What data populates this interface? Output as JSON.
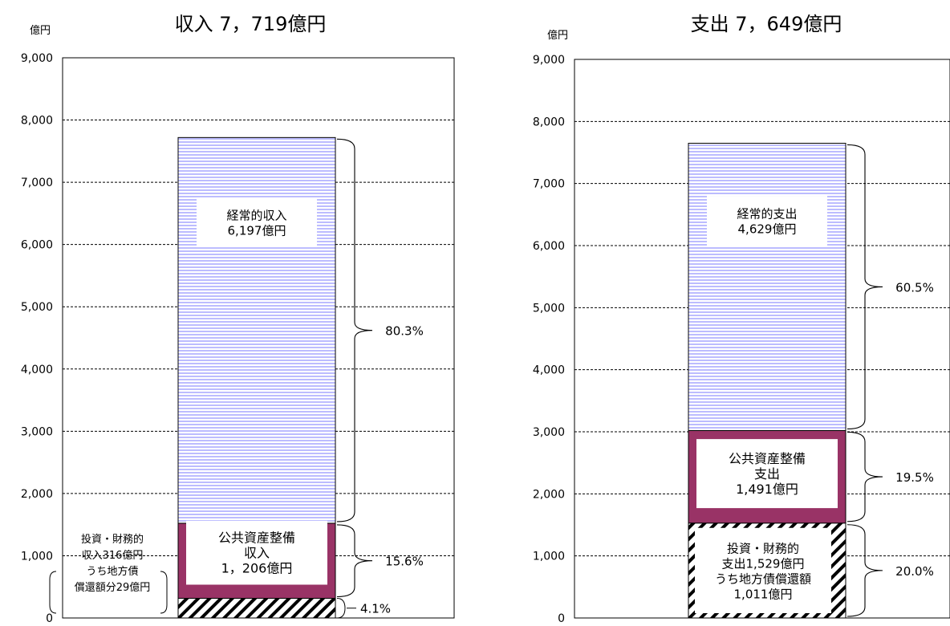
{
  "chart_data": [
    {
      "type": "bar",
      "title": "収入  7，719億円",
      "ylabel": "億円",
      "ylim": [
        0,
        9000
      ],
      "yticks": [
        "0",
        "1,000",
        "2,000",
        "3,000",
        "4,000",
        "5,000",
        "6,000",
        "7,000",
        "8,000",
        "9,000"
      ],
      "grid": true,
      "total": 7719,
      "segments": [
        {
          "key": "investment",
          "label_lines": [
            "投資・財務的",
            "収入316億円",
            "うち地方債",
            "償還額分29億円"
          ],
          "value": 316,
          "pattern": "diagonal-hatch",
          "percent": "4.1%"
        },
        {
          "key": "public",
          "label_lines": [
            "公共資産整備",
            "収入",
            "1，206億円"
          ],
          "value": 1206,
          "color": "#993366",
          "percent": "15.6%"
        },
        {
          "key": "recurring",
          "label_lines": [
            "経常的収入",
            "6,197億円"
          ],
          "value": 6197,
          "pattern": "horizontal-lines",
          "line_color": "#9999ff",
          "percent": "80.3%"
        }
      ]
    },
    {
      "type": "bar",
      "title": "支出  7，649億円",
      "ylabel": "億円",
      "ylim": [
        0,
        9000
      ],
      "yticks": [
        "0",
        "1,000",
        "2,000",
        "3,000",
        "4,000",
        "5,000",
        "6,000",
        "7,000",
        "8,000",
        "9,000"
      ],
      "grid": true,
      "total": 7649,
      "segments": [
        {
          "key": "investment",
          "label_lines": [
            "投資・財務的",
            "支出1,529億円",
            "うち地方債償還額",
            "1,011億円"
          ],
          "value": 1529,
          "pattern": "diagonal-hatch",
          "percent": "20.0%"
        },
        {
          "key": "public",
          "label_lines": [
            "公共資産整備",
            "支出",
            "1,491億円"
          ],
          "value": 1491,
          "color": "#993366",
          "percent": "19.5%"
        },
        {
          "key": "recurring",
          "label_lines": [
            "経常的支出",
            "4,629億円"
          ],
          "value": 4629,
          "pattern": "horizontal-lines",
          "line_color": "#9999ff",
          "percent": "60.5%"
        }
      ]
    }
  ]
}
